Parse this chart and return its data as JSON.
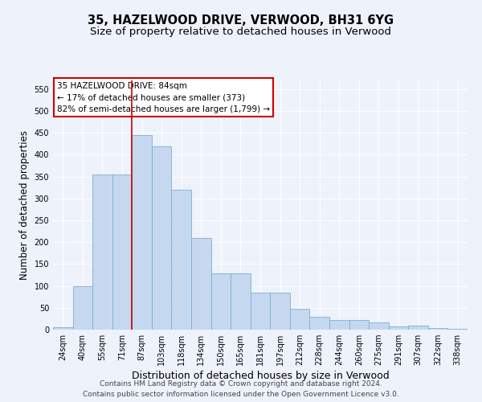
{
  "title": "35, HAZELWOOD DRIVE, VERWOOD, BH31 6YG",
  "subtitle": "Size of property relative to detached houses in Verwood",
  "xlabel": "Distribution of detached houses by size in Verwood",
  "ylabel": "Number of detached properties",
  "categories": [
    "24sqm",
    "40sqm",
    "55sqm",
    "71sqm",
    "87sqm",
    "103sqm",
    "118sqm",
    "134sqm",
    "150sqm",
    "165sqm",
    "181sqm",
    "197sqm",
    "212sqm",
    "228sqm",
    "244sqm",
    "260sqm",
    "275sqm",
    "291sqm",
    "307sqm",
    "322sqm",
    "338sqm"
  ],
  "values": [
    5,
    100,
    355,
    355,
    445,
    420,
    320,
    210,
    128,
    128,
    85,
    85,
    48,
    30,
    22,
    22,
    17,
    7,
    9,
    3,
    1
  ],
  "bar_color": "#c5d8f0",
  "bar_edge_color": "#7bafd4",
  "vline_x_index": 4,
  "vline_color": "#cc0000",
  "annotation_text": "35 HAZELWOOD DRIVE: 84sqm\n← 17% of detached houses are smaller (373)\n82% of semi-detached houses are larger (1,799) →",
  "annotation_box_color": "#ffffff",
  "annotation_box_edge_color": "#cc0000",
  "ylim": [
    0,
    570
  ],
  "yticks": [
    0,
    50,
    100,
    150,
    200,
    250,
    300,
    350,
    400,
    450,
    500,
    550
  ],
  "footer_line1": "Contains HM Land Registry data © Crown copyright and database right 2024.",
  "footer_line2": "Contains public sector information licensed under the Open Government Licence v3.0.",
  "bg_color": "#eef2fb",
  "grid_color": "#ffffff",
  "title_fontsize": 10.5,
  "subtitle_fontsize": 9.5,
  "tick_fontsize": 7,
  "ylabel_fontsize": 8.5,
  "xlabel_fontsize": 9,
  "footer_fontsize": 6.5
}
